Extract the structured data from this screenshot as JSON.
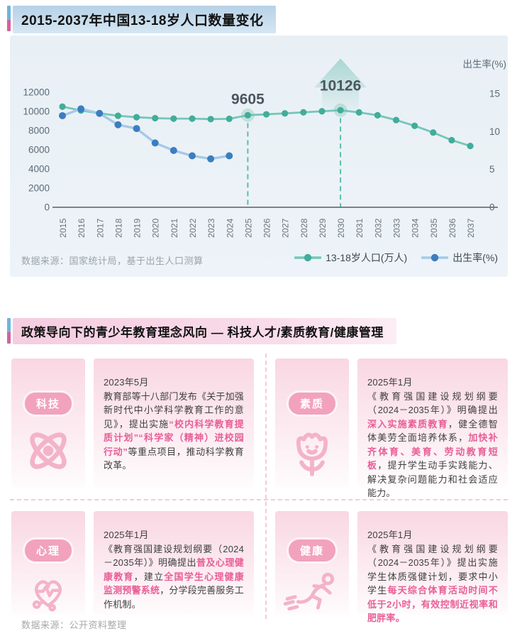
{
  "page": {
    "section1": {
      "title": "2015-2037年中国13-18岁人口数量变化",
      "source": "数据来源：国家统计局，基于出生人口测算"
    },
    "section2": {
      "title": "政策导向下的青少年教育理念风向 — 科技人才/素质教育/健康管理",
      "source": "数据来源：公开资料整理",
      "cards": [
        {
          "badge": "科技",
          "icon": "atom-icon",
          "date": "2023年5月",
          "body": [
            {
              "text": "教育部等十八部门发布《关于加强新时代中小学科学教育工作的意见》，提出实施",
              "highlight": false
            },
            {
              "text": "“校内科学教育提质计划”“科学家（精神）进校园行动”",
              "highlight": true
            },
            {
              "text": "等重点项目，推动科学教育改革。",
              "highlight": false
            }
          ]
        },
        {
          "badge": "素质",
          "icon": "flower-icon",
          "date": "2025年1月",
          "body": [
            {
              "text": "《教育强国建设规划纲要（2024－2035年）》明确提出",
              "highlight": false
            },
            {
              "text": "深入实施素质教育",
              "highlight": true
            },
            {
              "text": "，健全德智体美劳全面培养体系，",
              "highlight": false
            },
            {
              "text": "加快补齐体育、美育、劳动教育短板",
              "highlight": true
            },
            {
              "text": "，提升学生动手实践能力、解决复杂问题能力和社会适应能力。",
              "highlight": false
            }
          ]
        },
        {
          "badge": "心理",
          "icon": "heart-health-icon",
          "date": "2025年1月",
          "body": [
            {
              "text": "《教育强国建设规划纲要（2024－2035年）》明确提出",
              "highlight": false
            },
            {
              "text": "普及心理健康教育",
              "highlight": true
            },
            {
              "text": "，建立",
              "highlight": false
            },
            {
              "text": "全国学生心理健康监测预警系统",
              "highlight": true
            },
            {
              "text": "，分学段完善服务工作机制。",
              "highlight": false
            }
          ]
        },
        {
          "badge": "健康",
          "icon": "runner-icon",
          "date": "2025年1月",
          "body": [
            {
              "text": "《教育强国建设规划纲要（2024－2035年）》提出实施学生体质强健计划，要求中小学生",
              "highlight": false
            },
            {
              "text": "每天综合体育活动时间不低于2小时，有效控制近视率和肥胖率。",
              "highlight": true
            }
          ]
        }
      ]
    }
  },
  "colors": {
    "population_line": "#74c7b7",
    "population_dot": "#41ad9a",
    "birthrate_line": "#a5c9e8",
    "birthrate_dot": "#3b7ec0",
    "highlight_pink": "#e75f97",
    "badge_pink": "#f2a2bd",
    "accent_blue": "#6fb3de",
    "accent_pink": "#d2639a"
  },
  "chart_data": {
    "type": "line",
    "title": "2015-2037年中国13-18岁人口数量变化",
    "x": [
      2015,
      2016,
      2017,
      2018,
      2019,
      2020,
      2021,
      2022,
      2023,
      2024,
      2025,
      2026,
      2027,
      2028,
      2029,
      2030,
      2031,
      2032,
      2033,
      2034,
      2035,
      2036,
      2037
    ],
    "x_label_rotation": "vertical",
    "left_axis": {
      "ticks": [
        0,
        2000,
        4000,
        6000,
        8000,
        10000,
        12000
      ],
      "unit": "万人"
    },
    "right_axis": {
      "label": "出生率(%)",
      "ticks": [
        0,
        5,
        10,
        15
      ]
    },
    "series": [
      {
        "name": "13-18岁人口(万人)",
        "axis": "left",
        "line_color": "#74c7b7",
        "dot_color": "#41ad9a",
        "values": [
          10500,
          10100,
          9800,
          9550,
          9400,
          9300,
          9250,
          9250,
          9200,
          9230,
          9605,
          9700,
          9800,
          9910,
          10020,
          10126,
          9900,
          9600,
          9100,
          8500,
          7800,
          7000,
          6400
        ]
      },
      {
        "name": "出生率(%)",
        "axis": "right",
        "line_color": "#a5c9e8",
        "dot_color": "#3b7ec0",
        "values": [
          12.1,
          13.0,
          12.4,
          10.9,
          10.4,
          8.5,
          7.5,
          6.8,
          6.4,
          6.8
        ]
      }
    ],
    "annotations": [
      {
        "x": 2025,
        "label": "9605",
        "series": 0,
        "style": "dashed-drop"
      },
      {
        "x": 2030,
        "label": "10126",
        "series": 0,
        "style": "dashed-drop-arrow"
      }
    ],
    "legend_position": "bottom-right",
    "grid": false
  }
}
